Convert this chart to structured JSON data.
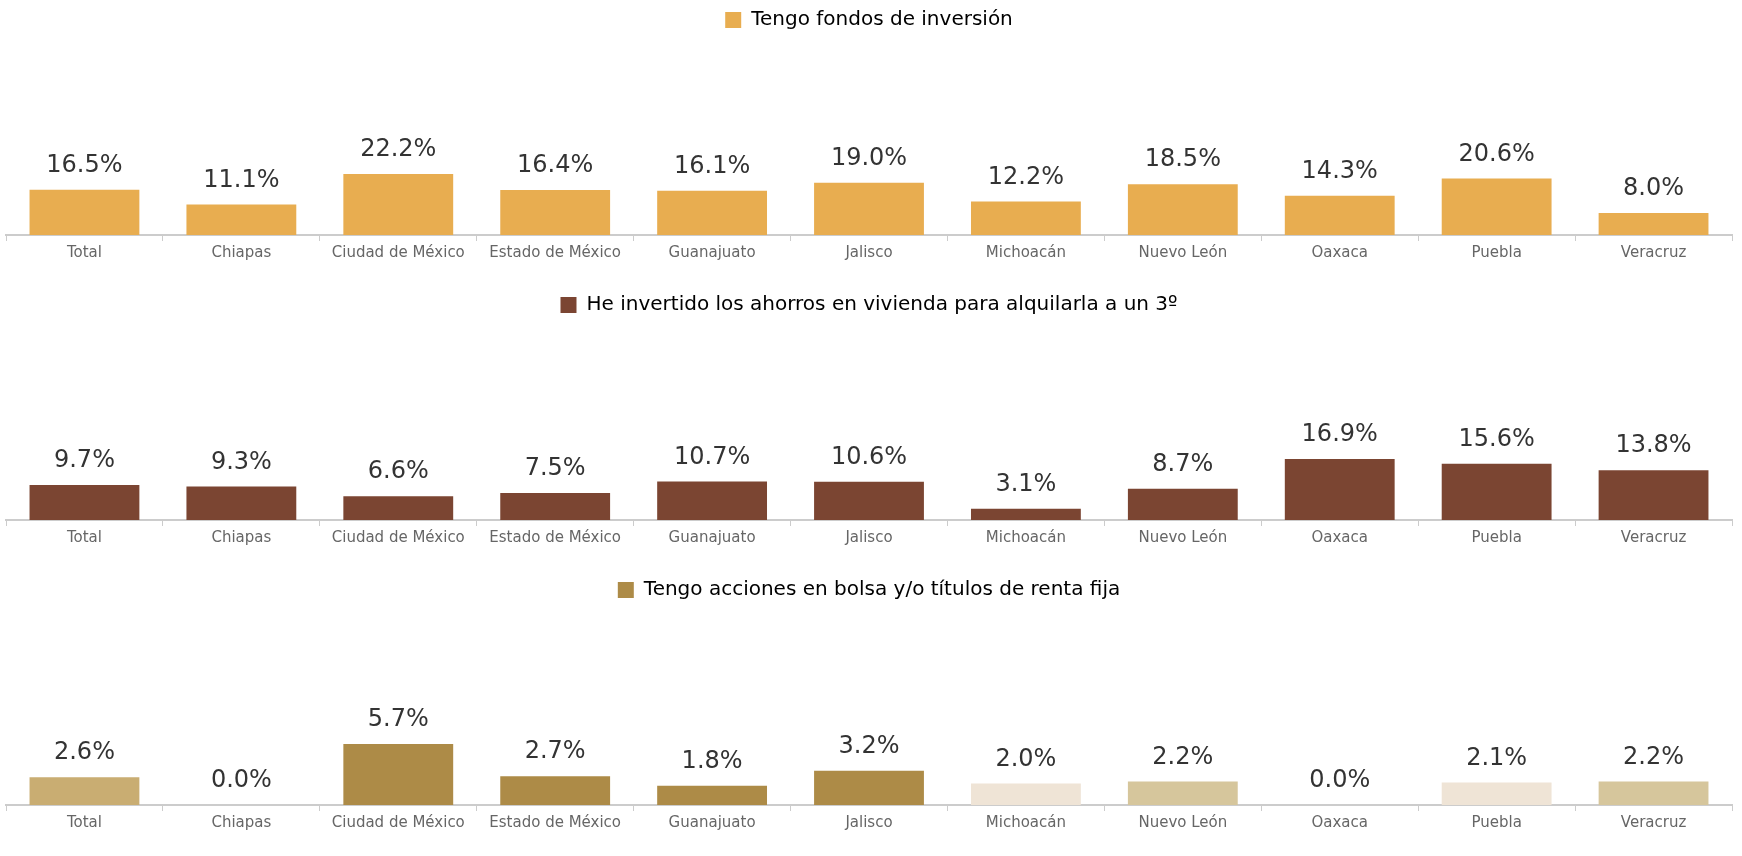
{
  "chart_data": [
    {
      "type": "bar",
      "legend": "top",
      "categories": [
        "Total",
        "Chiapas",
        "Ciudad de México",
        "Estado de México",
        "Guanajuato",
        "Jalisco",
        "Michoacán",
        "Nuevo León",
        "Oaxaca",
        "Puebla",
        "Veracruz"
      ],
      "series": [
        {
          "name": "Tengo fondos de inversión",
          "color": "#e8ad50",
          "values": [
            16.5,
            11.1,
            22.2,
            16.4,
            16.1,
            19.0,
            12.2,
            18.5,
            14.3,
            20.6,
            8.0
          ],
          "value_labels": [
            "16.5%",
            "11.1%",
            "22.2%",
            "16.4%",
            "16.1%",
            "19.0%",
            "12.2%",
            "18.5%",
            "14.3%",
            "20.6%",
            "8.0%"
          ]
        }
      ]
    },
    {
      "type": "bar",
      "legend": "top",
      "categories": [
        "Total",
        "Chiapas",
        "Ciudad de México",
        "Estado de México",
        "Guanajuato",
        "Jalisco",
        "Michoacán",
        "Nuevo León",
        "Oaxaca",
        "Puebla",
        "Veracruz"
      ],
      "series": [
        {
          "name": "He invertido los ahorros en vivienda para alquilarla a un 3º",
          "color": "#7b4532",
          "values": [
            9.7,
            9.3,
            6.6,
            7.5,
            10.7,
            10.6,
            3.1,
            8.7,
            16.9,
            15.6,
            13.8
          ],
          "value_labels": [
            "9.7%",
            "9.3%",
            "6.6%",
            "7.5%",
            "10.7%",
            "10.6%",
            "3.1%",
            "8.7%",
            "16.9%",
            "15.6%",
            "13.8%"
          ]
        }
      ]
    },
    {
      "type": "bar",
      "legend": "top",
      "categories": [
        "Total",
        "Chiapas",
        "Ciudad de México",
        "Estado de México",
        "Guanajuato",
        "Jalisco",
        "Michoacán",
        "Nuevo León",
        "Oaxaca",
        "Puebla",
        "Veracruz"
      ],
      "series": [
        {
          "name": "Tengo acciones en bolsa y/o títulos de renta fija",
          "color": "#ad8b47",
          "colors": [
            "#c9ad72",
            "#ad8b47",
            "#ad8b47",
            "#ad8b47",
            "#ad8b47",
            "#ad8b47",
            "#efe4d6",
            "#d6c69c",
            "#ad8b47",
            "#efe4d6",
            "#d6c69c"
          ],
          "values": [
            2.6,
            0.0,
            5.7,
            2.7,
            1.8,
            3.2,
            2.0,
            2.2,
            0.0,
            2.1,
            2.2
          ],
          "value_labels": [
            "2.6%",
            "0.0%",
            "5.7%",
            "2.7%",
            "1.8%",
            "3.2%",
            "2.0%",
            "2.2%",
            "0.0%",
            "2.1%",
            "2.2%"
          ]
        }
      ]
    }
  ]
}
